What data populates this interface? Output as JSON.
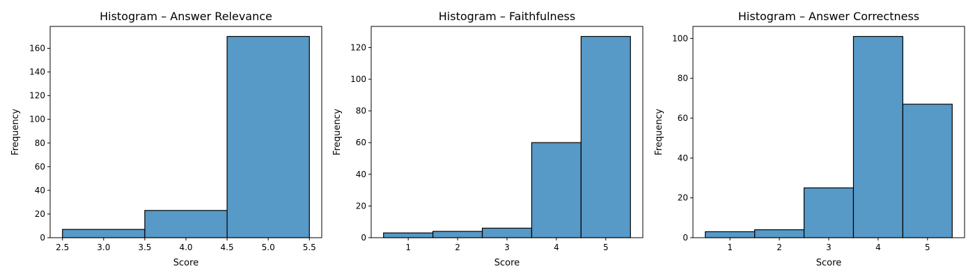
{
  "figure": {
    "background": "#ffffff"
  },
  "chart_data": [
    {
      "type": "bar",
      "title": "Histogram – Answer Relevance",
      "xlabel": "Score",
      "ylabel": "Frequency",
      "bar_color": "#5799c7",
      "edge_color": "#000000",
      "bins": [
        {
          "start": 2.5,
          "end": 3.5,
          "value": 7
        },
        {
          "start": 3.5,
          "end": 4.5,
          "value": 23
        },
        {
          "start": 4.5,
          "end": 5.5,
          "value": 170
        }
      ],
      "xlim": [
        2.35,
        5.65
      ],
      "ylim": [
        0,
        178.5
      ],
      "xticks": [
        2.5,
        3.0,
        3.5,
        4.0,
        4.5,
        5.0,
        5.5
      ],
      "xtick_labels": [
        "2.5",
        "3.0",
        "3.5",
        "4.0",
        "4.5",
        "5.0",
        "5.5"
      ],
      "yticks": [
        0,
        20,
        40,
        60,
        80,
        100,
        120,
        140,
        160
      ],
      "ytick_labels": [
        "0",
        "20",
        "40",
        "60",
        "80",
        "100",
        "120",
        "140",
        "160"
      ],
      "grid": false
    },
    {
      "type": "bar",
      "title": "Histogram – Faithfulness",
      "xlabel": "Score",
      "ylabel": "Frequency",
      "bar_color": "#5799c7",
      "edge_color": "#000000",
      "bins": [
        {
          "start": 0.5,
          "end": 1.5,
          "value": 3
        },
        {
          "start": 1.5,
          "end": 2.5,
          "value": 4
        },
        {
          "start": 2.5,
          "end": 3.5,
          "value": 6
        },
        {
          "start": 3.5,
          "end": 4.5,
          "value": 60
        },
        {
          "start": 4.5,
          "end": 5.5,
          "value": 127
        }
      ],
      "xlim": [
        0.25,
        5.75
      ],
      "ylim": [
        0,
        133.35
      ],
      "xticks": [
        1,
        2,
        3,
        4,
        5
      ],
      "xtick_labels": [
        "1",
        "2",
        "3",
        "4",
        "5"
      ],
      "yticks": [
        0,
        20,
        40,
        60,
        80,
        100,
        120
      ],
      "ytick_labels": [
        "0",
        "20",
        "40",
        "60",
        "80",
        "100",
        "120"
      ],
      "grid": false
    },
    {
      "type": "bar",
      "title": "Histogram – Answer Correctness",
      "xlabel": "Score",
      "ylabel": "Frequency",
      "bar_color": "#5799c7",
      "edge_color": "#000000",
      "bins": [
        {
          "start": 0.5,
          "end": 1.5,
          "value": 3
        },
        {
          "start": 1.5,
          "end": 2.5,
          "value": 4
        },
        {
          "start": 2.5,
          "end": 3.5,
          "value": 25
        },
        {
          "start": 3.5,
          "end": 4.5,
          "value": 101
        },
        {
          "start": 4.5,
          "end": 5.5,
          "value": 67
        }
      ],
      "xlim": [
        0.25,
        5.75
      ],
      "ylim": [
        0,
        106.05
      ],
      "xticks": [
        1,
        2,
        3,
        4,
        5
      ],
      "xtick_labels": [
        "1",
        "2",
        "3",
        "4",
        "5"
      ],
      "yticks": [
        0,
        20,
        40,
        60,
        80,
        100
      ],
      "ytick_labels": [
        "0",
        "20",
        "40",
        "60",
        "80",
        "100"
      ],
      "grid": false
    }
  ]
}
